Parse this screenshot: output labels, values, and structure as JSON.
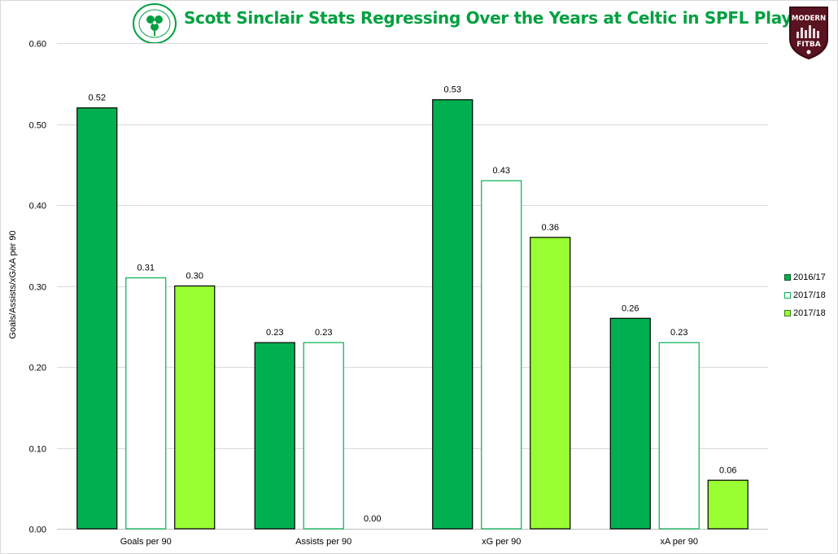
{
  "title": "Scott Sinclair Stats Regressing Over the Years at Celtic in SPFL Play",
  "logos": {
    "left": {
      "name": "celtic-crest",
      "color": "#00a040",
      "ring_text": "THE CELTIC FOOTBALL CLUB",
      "year": "1888"
    },
    "right": {
      "name": "modern-fitba-shield",
      "line1": "MODERN",
      "line2": "FITBA"
    }
  },
  "chart_data": {
    "type": "bar",
    "title": "Scott Sinclair Stats Regressing Over the Years at Celtic in SPFL Play",
    "xlabel": "",
    "ylabel": "Goals/Assists/xG/xA per 90",
    "ylim": [
      0,
      0.6
    ],
    "yticks": [
      "0.00",
      "0.10",
      "0.20",
      "0.30",
      "0.40",
      "0.50",
      "0.60"
    ],
    "grid": true,
    "legend_position": "right",
    "categories": [
      "Goals per 90",
      "Assists per 90",
      "xG per 90",
      "xA per 90"
    ],
    "series": [
      {
        "name": "2016/17",
        "color": "#00b050",
        "values": [
          0.52,
          0.23,
          0.53,
          0.26
        ]
      },
      {
        "name": "2017/18",
        "color": "#ffffff",
        "values": [
          0.31,
          0.23,
          0.43,
          0.23
        ]
      },
      {
        "name": "2017/18",
        "color": "#99ff33",
        "values": [
          0.3,
          0.0,
          0.36,
          0.06
        ]
      }
    ],
    "data_labels": [
      [
        "0.52",
        "0.23",
        "0.53",
        "0.26"
      ],
      [
        "0.31",
        "0.23",
        "0.43",
        "0.23"
      ],
      [
        "0.30",
        "0.00",
        "0.36",
        "0.06"
      ]
    ]
  }
}
